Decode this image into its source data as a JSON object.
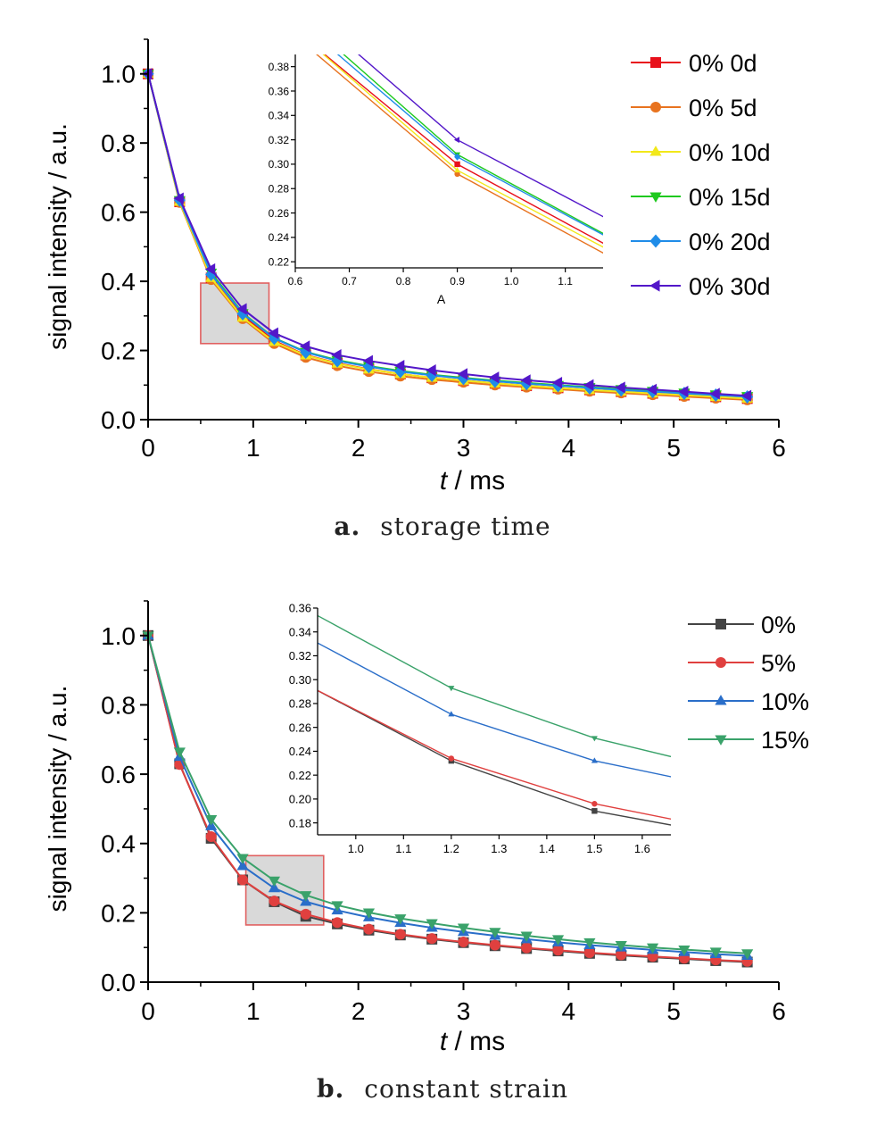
{
  "chart_data": [
    {
      "panel": "a",
      "type": "line",
      "caption_letter": "a.",
      "caption_text": "storage time",
      "xlabel_italic": "t",
      "xlabel_rest": " / ms",
      "ylabel": "signal intensity / a.u.",
      "xlim": [
        0,
        6
      ],
      "ylim": [
        0,
        1.1
      ],
      "xticks": [
        "0",
        "1",
        "2",
        "3",
        "4",
        "5",
        "6"
      ],
      "yticks": [
        "0.0",
        "0.2",
        "0.4",
        "0.6",
        "0.8",
        "1.0"
      ],
      "legend_position": "top-right",
      "x": [
        0,
        0.3,
        0.6,
        0.9,
        1.2,
        1.5,
        1.8,
        2.1,
        2.4,
        2.7,
        3.0,
        3.3,
        3.6,
        3.9,
        4.2,
        4.5,
        4.8,
        5.1,
        5.4,
        5.7
      ],
      "series": [
        {
          "name": "0% 0d",
          "color": "#e8111b",
          "marker": "square",
          "values": [
            1.0,
            0.63,
            0.41,
            0.3,
            0.228,
            0.187,
            0.163,
            0.146,
            0.132,
            0.121,
            0.113,
            0.105,
            0.098,
            0.092,
            0.086,
            0.081,
            0.076,
            0.071,
            0.066,
            0.061
          ]
        },
        {
          "name": "0% 5d",
          "color": "#e8731f",
          "marker": "circle",
          "values": [
            1.0,
            0.628,
            0.405,
            0.292,
            0.22,
            0.18,
            0.156,
            0.139,
            0.126,
            0.116,
            0.108,
            0.1,
            0.094,
            0.088,
            0.082,
            0.077,
            0.072,
            0.067,
            0.062,
            0.057
          ]
        },
        {
          "name": "0% 10d",
          "color": "#f2e81a",
          "marker": "triangle-up",
          "values": [
            1.0,
            0.63,
            0.41,
            0.295,
            0.225,
            0.186,
            0.162,
            0.145,
            0.132,
            0.121,
            0.113,
            0.105,
            0.098,
            0.092,
            0.086,
            0.081,
            0.076,
            0.071,
            0.066,
            0.061
          ]
        },
        {
          "name": "0% 15d",
          "color": "#1ec91e",
          "marker": "triangle-down",
          "values": [
            1.0,
            0.635,
            0.425,
            0.308,
            0.236,
            0.196,
            0.172,
            0.155,
            0.141,
            0.13,
            0.121,
            0.113,
            0.106,
            0.1,
            0.094,
            0.088,
            0.083,
            0.078,
            0.073,
            0.068
          ]
        },
        {
          "name": "0% 20d",
          "color": "#1f8ce8",
          "marker": "diamond",
          "values": [
            1.0,
            0.635,
            0.42,
            0.306,
            0.235,
            0.195,
            0.17,
            0.153,
            0.139,
            0.128,
            0.119,
            0.111,
            0.104,
            0.098,
            0.092,
            0.086,
            0.081,
            0.076,
            0.071,
            0.066
          ]
        },
        {
          "name": "0% 30d",
          "color": "#5317c9",
          "marker": "triangle-left",
          "values": [
            1.0,
            0.64,
            0.435,
            0.32,
            0.25,
            0.212,
            0.187,
            0.17,
            0.156,
            0.143,
            0.132,
            0.122,
            0.114,
            0.107,
            0.1,
            0.093,
            0.087,
            0.081,
            0.075,
            0.069
          ]
        }
      ],
      "highlight_box": {
        "x": [
          0.5,
          1.15
        ],
        "y": [
          0.22,
          0.395
        ]
      },
      "inset": {
        "xlim": [
          0.6,
          1.17
        ],
        "ylim": [
          0.215,
          0.39
        ],
        "xticks": [
          "0.6",
          "0.7",
          "0.8",
          "0.9",
          "1.0",
          "1.1"
        ],
        "yticks": [
          "0.22",
          "0.24",
          "0.26",
          "0.28",
          "0.30",
          "0.32",
          "0.34",
          "0.36",
          "0.38"
        ],
        "xlabel": "A"
      }
    },
    {
      "panel": "b",
      "type": "line",
      "caption_letter": "b.",
      "caption_text": "constant strain",
      "xlabel_italic": "t",
      "xlabel_rest": " / ms",
      "ylabel": "signal intensity / a.u.",
      "xlim": [
        0,
        6
      ],
      "ylim": [
        0,
        1.1
      ],
      "xticks": [
        "0",
        "1",
        "2",
        "3",
        "4",
        "5",
        "6"
      ],
      "yticks": [
        "0.0",
        "0.2",
        "0.4",
        "0.6",
        "0.8",
        "1.0"
      ],
      "legend_position": "top-right",
      "x": [
        0,
        0.3,
        0.6,
        0.9,
        1.2,
        1.5,
        1.8,
        2.1,
        2.4,
        2.7,
        3.0,
        3.3,
        3.6,
        3.9,
        4.2,
        4.5,
        4.8,
        5.1,
        5.4,
        5.7
      ],
      "series": [
        {
          "name": "0%",
          "color": "#444444",
          "marker": "square",
          "values": [
            1.0,
            0.63,
            0.415,
            0.295,
            0.232,
            0.19,
            0.168,
            0.15,
            0.136,
            0.124,
            0.114,
            0.105,
            0.097,
            0.09,
            0.083,
            0.077,
            0.072,
            0.067,
            0.062,
            0.058
          ]
        },
        {
          "name": "5%",
          "color": "#e0403f",
          "marker": "circle",
          "values": [
            1.0,
            0.628,
            0.42,
            0.295,
            0.234,
            0.196,
            0.172,
            0.153,
            0.138,
            0.126,
            0.116,
            0.107,
            0.099,
            0.092,
            0.085,
            0.079,
            0.074,
            0.069,
            0.064,
            0.06
          ]
        },
        {
          "name": "10%",
          "color": "#2a6ec9",
          "marker": "triangle-up",
          "values": [
            1.0,
            0.65,
            0.45,
            0.335,
            0.271,
            0.232,
            0.207,
            0.187,
            0.171,
            0.157,
            0.145,
            0.134,
            0.124,
            0.115,
            0.107,
            0.1,
            0.093,
            0.087,
            0.081,
            0.076
          ]
        },
        {
          "name": "15%",
          "color": "#3aa26a",
          "marker": "triangle-down",
          "values": [
            1.0,
            0.665,
            0.47,
            0.358,
            0.293,
            0.251,
            0.222,
            0.201,
            0.184,
            0.17,
            0.157,
            0.145,
            0.134,
            0.124,
            0.115,
            0.107,
            0.1,
            0.094,
            0.088,
            0.083
          ]
        }
      ],
      "highlight_box": {
        "x": [
          0.93,
          1.67
        ],
        "y": [
          0.165,
          0.365
        ]
      },
      "inset": {
        "xlim": [
          0.92,
          1.66
        ],
        "ylim": [
          0.17,
          0.36
        ],
        "xticks": [
          "1.0",
          "1.1",
          "1.2",
          "1.3",
          "1.4",
          "1.5",
          "1.6"
        ],
        "yticks": [
          "0.18",
          "0.20",
          "0.22",
          "0.24",
          "0.26",
          "0.28",
          "0.30",
          "0.32",
          "0.34",
          "0.36"
        ],
        "xlabel": ""
      }
    }
  ]
}
